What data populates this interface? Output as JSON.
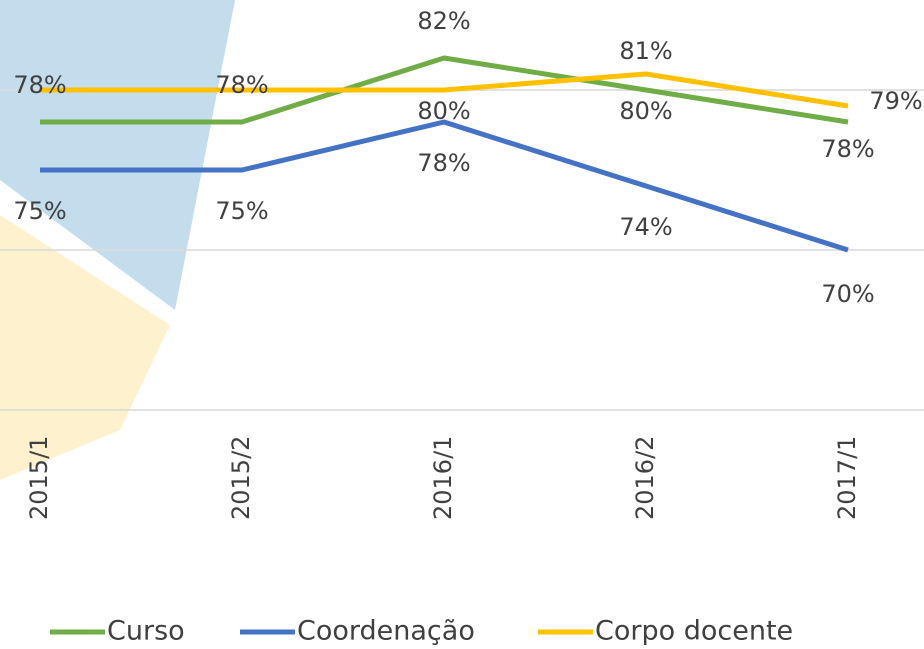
{
  "chart_data": {
    "type": "line",
    "categories": [
      "2015/1",
      "2015/2",
      "2016/1",
      "2016/2",
      "2017/1"
    ],
    "series": [
      {
        "name": "Curso",
        "color": "#70ad47",
        "values": [
          78,
          78,
          82,
          80,
          78
        ],
        "value_labels": [
          "78%",
          "78%",
          "82%",
          "80%",
          "78%"
        ]
      },
      {
        "name": "Coordenação",
        "color": "#4472c4",
        "values": [
          75,
          75,
          78,
          74,
          70
        ],
        "value_labels": [
          "75%",
          "75%",
          "78%",
          "74%",
          "70%"
        ]
      },
      {
        "name": "Corpo docente",
        "color": "#ffc000",
        "values": [
          80,
          80,
          80,
          81,
          79
        ],
        "value_labels": [
          null,
          null,
          "80%",
          "81%",
          "79%"
        ]
      }
    ],
    "ylim": [
      60,
      85
    ],
    "yticks": [
      60,
      70,
      80
    ],
    "grid": true
  }
}
